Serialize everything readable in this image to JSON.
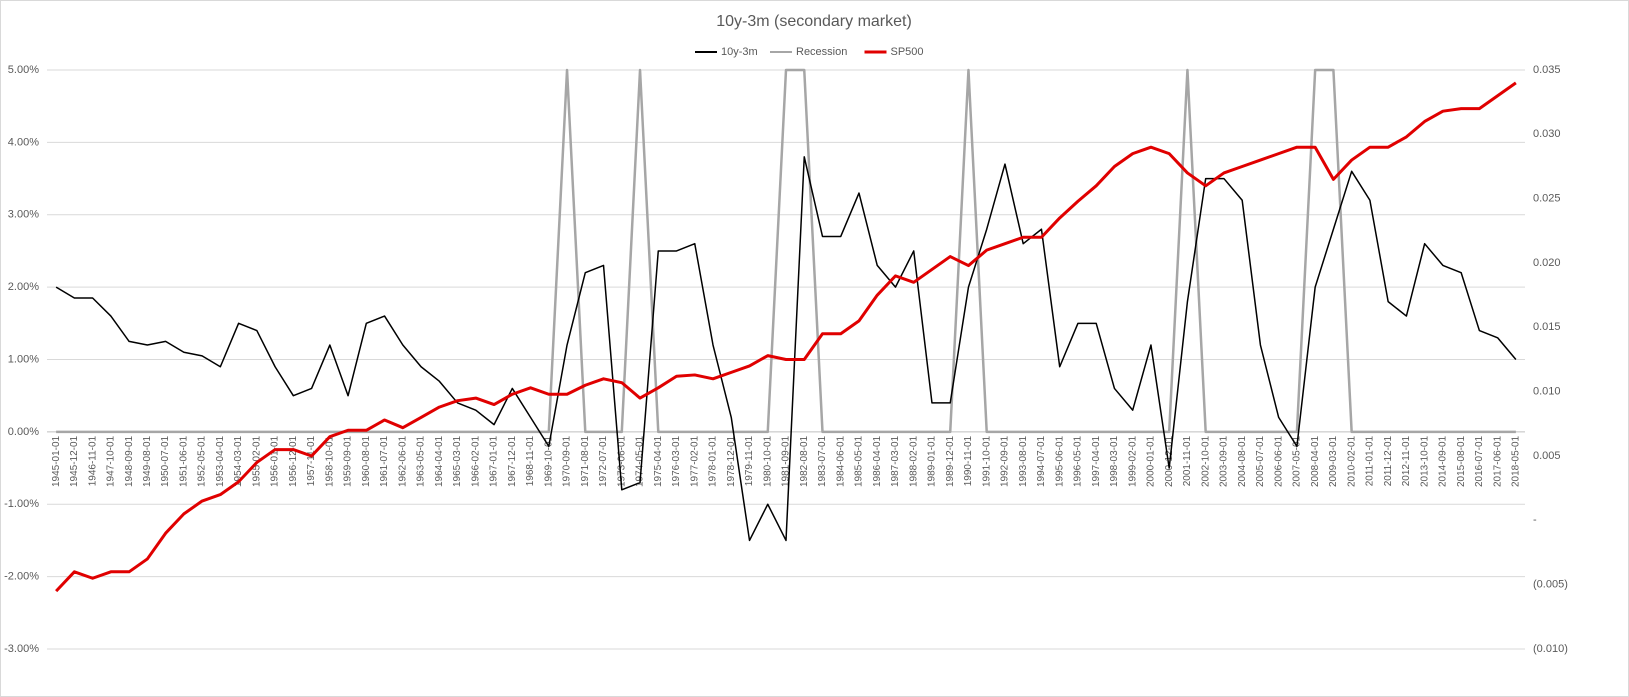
{
  "chart_data": {
    "type": "line",
    "title": "10y-3m (secondary market)",
    "legend": "top",
    "grid": true,
    "categories": [
      "1945-01-01",
      "1945-12-01",
      "1946-11-01",
      "1947-10-01",
      "1948-09-01",
      "1949-08-01",
      "1950-07-01",
      "1951-06-01",
      "1952-05-01",
      "1953-04-01",
      "1954-03-01",
      "1955-02-01",
      "1956-01-01",
      "1956-12-01",
      "1957-11-01",
      "1958-10-01",
      "1959-09-01",
      "1960-08-01",
      "1961-07-01",
      "1962-06-01",
      "1963-05-01",
      "1964-04-01",
      "1965-03-01",
      "1966-02-01",
      "1967-01-01",
      "1967-12-01",
      "1968-11-01",
      "1969-10-01",
      "1970-09-01",
      "1971-08-01",
      "1972-07-01",
      "1973-06-01",
      "1974-05-01",
      "1975-04-01",
      "1976-03-01",
      "1977-02-01",
      "1978-01-01",
      "1978-12-01",
      "1979-11-01",
      "1980-10-01",
      "1981-09-01",
      "1982-08-01",
      "1983-07-01",
      "1984-06-01",
      "1985-05-01",
      "1986-04-01",
      "1987-03-01",
      "1988-02-01",
      "1989-01-01",
      "1989-12-01",
      "1990-11-01",
      "1991-10-01",
      "1992-09-01",
      "1993-08-01",
      "1994-07-01",
      "1995-06-01",
      "1996-05-01",
      "1997-04-01",
      "1998-03-01",
      "1999-02-01",
      "2000-01-01",
      "2000-12-01",
      "2001-11-01",
      "2002-10-01",
      "2003-09-01",
      "2004-08-01",
      "2005-07-01",
      "2006-06-01",
      "2007-05-01",
      "2008-04-01",
      "2009-03-01",
      "2010-02-01",
      "2011-01-01",
      "2011-12-01",
      "2012-11-01",
      "2013-10-01",
      "2014-09-01",
      "2015-08-01",
      "2016-07-01",
      "2017-06-01",
      "2018-05-01"
    ],
    "series": [
      {
        "name": "10y-3m",
        "color": "#000000",
        "axis": "y",
        "values": [
          2.0,
          1.85,
          1.85,
          1.6,
          1.25,
          1.2,
          1.25,
          1.1,
          1.05,
          0.9,
          1.5,
          1.4,
          0.9,
          0.5,
          0.6,
          1.2,
          0.5,
          1.5,
          1.6,
          1.2,
          0.9,
          0.7,
          0.4,
          0.3,
          0.1,
          0.6,
          0.2,
          -0.2,
          1.2,
          2.2,
          2.3,
          -0.8,
          -0.7,
          2.5,
          2.5,
          2.6,
          1.2,
          0.2,
          -1.5,
          -1.0,
          -1.5,
          3.8,
          2.7,
          2.7,
          3.3,
          2.3,
          2.0,
          2.5,
          0.4,
          0.4,
          2.0,
          2.8,
          3.7,
          2.6,
          2.8,
          0.9,
          1.5,
          1.5,
          0.6,
          0.3,
          1.2,
          -0.5,
          1.8,
          3.5,
          3.5,
          3.2,
          1.2,
          0.2,
          -0.2,
          2.0,
          2.8,
          3.6,
          3.2,
          1.8,
          1.6,
          2.6,
          2.3,
          2.2,
          1.4,
          1.3,
          1.0
        ]
      },
      {
        "name": "Recession",
        "color": "#a6a6a6",
        "axis": "y",
        "values": [
          0,
          0,
          0,
          0,
          0,
          0,
          0,
          0,
          0,
          0,
          0,
          0,
          0,
          0,
          0,
          0,
          0,
          0,
          0,
          0,
          0,
          0,
          0,
          0,
          0,
          0,
          0,
          0,
          5,
          0,
          0,
          0,
          5,
          0,
          0,
          0,
          0,
          0,
          0,
          0,
          5,
          5,
          0,
          0,
          0,
          0,
          0,
          0,
          0,
          0,
          5,
          0,
          0,
          0,
          0,
          0,
          0,
          0,
          0,
          0,
          0,
          0,
          5,
          0,
          0,
          0,
          0,
          0,
          0,
          5,
          5,
          0,
          0,
          0,
          0,
          0,
          0,
          0,
          0,
          0,
          0
        ]
      },
      {
        "name": "SP500",
        "color": "#e00000",
        "axis": "y2",
        "values": [
          -0.0055,
          -0.004,
          -0.0045,
          -0.004,
          -0.004,
          -0.003,
          -0.001,
          0.0005,
          0.0015,
          0.002,
          0.003,
          0.0045,
          0.0055,
          0.0055,
          0.005,
          0.0065,
          0.007,
          0.007,
          0.0078,
          0.0072,
          0.008,
          0.0088,
          0.0093,
          0.0095,
          0.009,
          0.0098,
          0.0103,
          0.0098,
          0.0098,
          0.0105,
          0.011,
          0.0107,
          0.0095,
          0.0103,
          0.0112,
          0.0113,
          0.011,
          0.0115,
          0.012,
          0.0128,
          0.0125,
          0.0125,
          0.0145,
          0.0145,
          0.0155,
          0.0175,
          0.019,
          0.0185,
          0.0195,
          0.0205,
          0.0198,
          0.021,
          0.0215,
          0.022,
          0.022,
          0.0235,
          0.0248,
          0.026,
          0.0275,
          0.0285,
          0.029,
          0.0285,
          0.027,
          0.026,
          0.027,
          0.0275,
          0.028,
          0.0285,
          0.029,
          0.029,
          0.0265,
          0.028,
          0.029,
          0.029,
          0.0298,
          0.031,
          0.0318,
          0.032,
          0.032,
          0.033,
          0.034
        ]
      }
    ],
    "ylim": [
      -3,
      5
    ],
    "yticks": [
      {
        "value": -3,
        "label": "-3.00%"
      },
      {
        "value": -2,
        "label": "-2.00%"
      },
      {
        "value": -1,
        "label": "-1.00%"
      },
      {
        "value": 0,
        "label": "0.00%"
      },
      {
        "value": 1,
        "label": "1.00%"
      },
      {
        "value": 2,
        "label": "2.00%"
      },
      {
        "value": 3,
        "label": "3.00%"
      },
      {
        "value": 4,
        "label": "4.00%"
      },
      {
        "value": 5,
        "label": "5.00%"
      }
    ],
    "y2lim": [
      -0.01,
      0.035
    ],
    "y2ticks": [
      {
        "value": -0.01,
        "label": "(0.010)"
      },
      {
        "value": -0.005,
        "label": "(0.005)"
      },
      {
        "value": 0,
        "label": "-"
      },
      0.005,
      {
        "value": 0.01,
        "label": "0.010"
      },
      0.015,
      {
        "value": 0.02,
        "label": "0.020"
      },
      0.025,
      {
        "value": 0.03,
        "label": "0.030"
      },
      0.035
    ]
  }
}
